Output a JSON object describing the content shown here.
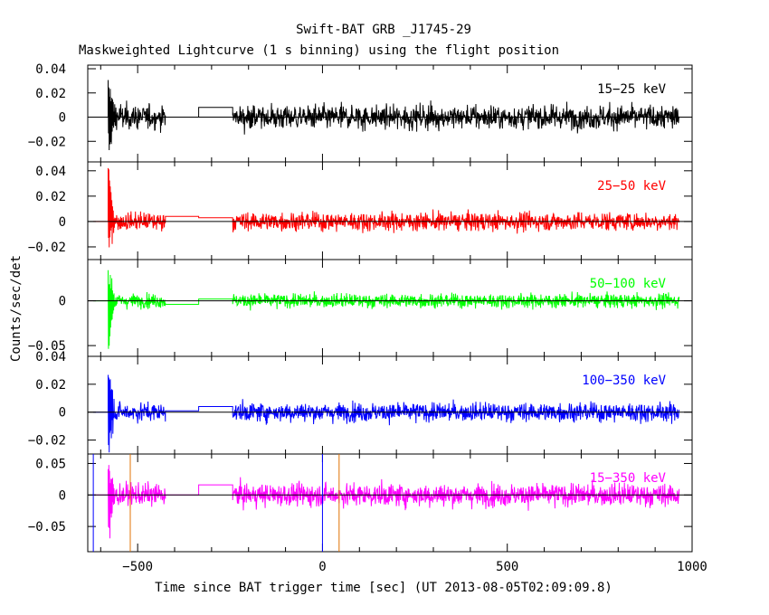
{
  "title": "Swift-BAT GRB _J1745-29",
  "subtitle": "Maskweighted Lightcurve (1 s binning) using the flight position",
  "chart_data": {
    "type": "line",
    "xlabel": "Time since BAT trigger time [sec] (UT 2013-08-05T02:09:09.8)",
    "ylabel": "Counts/sec/det",
    "xlim": [
      -635,
      1000
    ],
    "x_ticks": [
      -500,
      0,
      500,
      1000
    ],
    "x_tick_labels": [
      "−500",
      "0",
      "500",
      "1000"
    ],
    "grid": false,
    "vertical_markers": [
      {
        "x": -620,
        "color": "#0000ff"
      },
      {
        "x": -520,
        "color": "#e07000"
      },
      {
        "x": 0,
        "color": "#0000ff"
      },
      {
        "x": 45,
        "color": "#e07000"
      }
    ],
    "panels": [
      {
        "name": "15-25 keV",
        "label": "15−25 keV",
        "color": "#000000",
        "ylim": [
          -0.037,
          0.043
        ],
        "y_ticks": [
          -0.02,
          0,
          0.02,
          0.04
        ],
        "y_tick_labels": [
          "−0.02",
          "0",
          "0.02",
          "0.04"
        ],
        "noise_sigma": 0.009,
        "spike_max": 0.036,
        "spike_min": -0.035,
        "gap_level_1": 0.0,
        "gap_level_2": 0.008
      },
      {
        "name": "25-50 keV",
        "label": "25−50 keV",
        "color": "#ff0000",
        "ylim": [
          -0.03,
          0.047
        ],
        "y_ticks": [
          -0.02,
          0,
          0.02,
          0.04
        ],
        "y_tick_labels": [
          "−0.02",
          "0",
          "0.02",
          "0.04"
        ],
        "noise_sigma": 0.0065,
        "spike_max": 0.046,
        "spike_min": -0.027,
        "gap_level_1": 0.004,
        "gap_level_2": 0.003
      },
      {
        "name": "50-100 keV",
        "label": "50−100 keV",
        "color": "#00ff00",
        "ylim": [
          -0.062,
          0.046
        ],
        "y_ticks": [
          -0.05,
          0
        ],
        "y_tick_labels": [
          "−0.05",
          "0"
        ],
        "noise_sigma": 0.007,
        "spike_max": 0.045,
        "spike_min": -0.06,
        "gap_level_1": -0.004,
        "gap_level_2": 0.002
      },
      {
        "name": "100-350 keV",
        "label": "100−350 keV",
        "color": "#0000ff",
        "ylim": [
          -0.03,
          0.04
        ],
        "y_ticks": [
          -0.02,
          0,
          0.02,
          0.04
        ],
        "y_tick_labels": [
          "−0.02",
          "0",
          "0.02",
          "0.04"
        ],
        "noise_sigma": 0.006,
        "spike_max": 0.035,
        "spike_min": -0.03,
        "gap_level_1": 0.001,
        "gap_level_2": 0.004
      },
      {
        "name": "15-350 keV",
        "label": "15−350 keV",
        "color": "#ff00ff",
        "ylim": [
          -0.09,
          0.065
        ],
        "y_ticks": [
          -0.05,
          0,
          0.05
        ],
        "y_tick_labels": [
          "−0.05",
          "0",
          "0.05"
        ],
        "noise_sigma": 0.016,
        "spike_max": 0.06,
        "spike_min": -0.085,
        "gap_level_1": 0.0,
        "gap_level_2": 0.016
      }
    ],
    "segments": [
      {
        "kind": "flat",
        "from": -620,
        "to": -580,
        "level": 0
      },
      {
        "kind": "data",
        "from": -580,
        "to": -425
      },
      {
        "kind": "flat_gap1",
        "from": -425,
        "to": -335
      },
      {
        "kind": "flat_gap2",
        "from": -335,
        "to": -243
      },
      {
        "kind": "data",
        "from": -243,
        "to": 965
      }
    ]
  }
}
